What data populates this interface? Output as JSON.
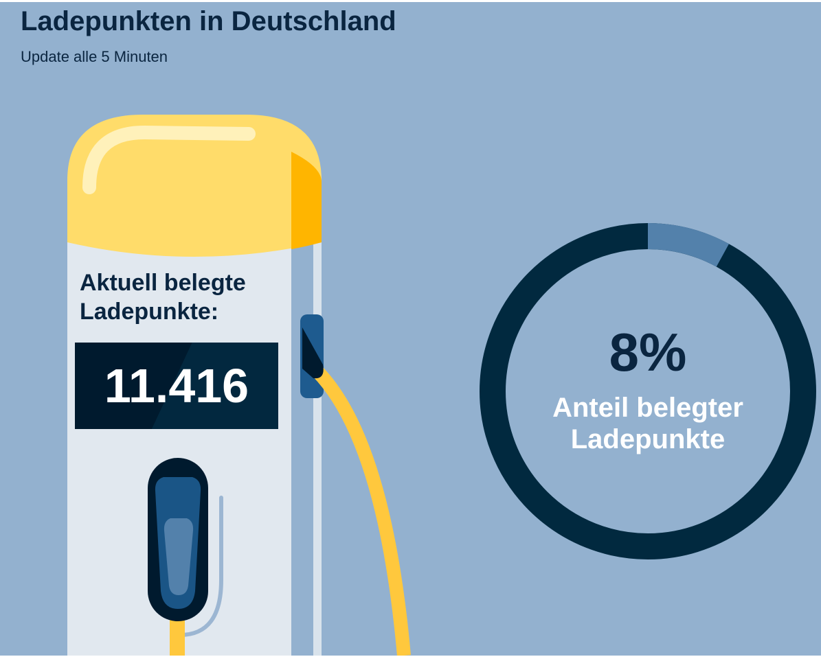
{
  "header": {
    "title": "Ladepunkten in Deutschland",
    "subtitle": "Update alle 5 Minuten"
  },
  "occupied": {
    "label": "Aktuell belegte Ladepunkte:",
    "value": "11.416"
  },
  "share": {
    "value_text": "8%",
    "fraction": 0.08,
    "label": "Anteil belegter Ladepunkte"
  },
  "colors": {
    "background": "#93b1cf",
    "dark_navy": "#01293f",
    "accent_yellow": "#ffdc6a",
    "ring_segment": "#5381ab",
    "cable": "#ffc83d"
  },
  "icons": {
    "charger": "charging-station-icon",
    "plug": "charging-plug-icon"
  }
}
